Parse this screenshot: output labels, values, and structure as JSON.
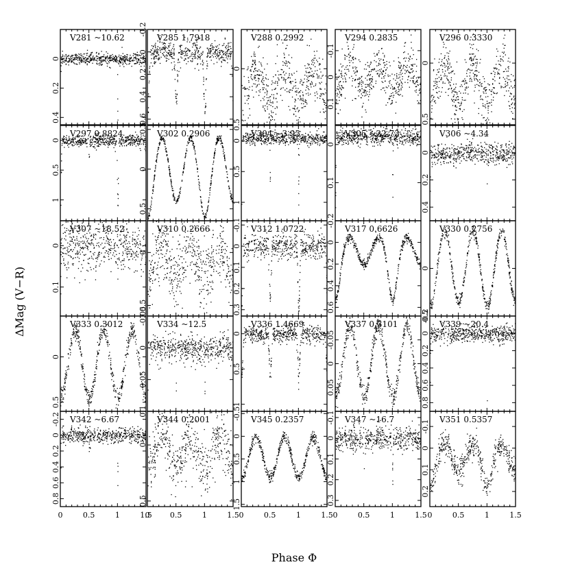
{
  "figure": {
    "xlabel": "Phase Φ",
    "ylabel": "ΔMag (V−R)"
  },
  "chart_data": {
    "type": "scatter",
    "grid": false,
    "xlim": [
      0,
      1.5
    ],
    "xticks": [
      "0",
      "0.5",
      "1",
      "1.5"
    ],
    "xlabel": "Phase Φ",
    "ylabel": "ΔMag (V−R)",
    "note": "y axes inverted (brighter up)",
    "panels": [
      {
        "label": "V281 ~10.62",
        "model": "flat",
        "base": 0.0,
        "noise": 0.02,
        "ylim": [
          0.45,
          -0.2
        ],
        "yticks": [
          0,
          0.2,
          0.4
        ],
        "dips": [
          {
            "x": 1.0,
            "depth": 0.45,
            "w": 0.004
          }
        ]
      },
      {
        "label": "V285 1.7918",
        "model": "dips",
        "base": 0.0,
        "noise": 0.05,
        "ylim": [
          0.65,
          -0.2
        ],
        "yticks": [
          -0.2,
          0,
          0.2,
          0.4,
          0.6
        ],
        "dips": [
          {
            "x": 0.5,
            "depth": 0.5,
            "w": 0.025
          },
          {
            "x": 1.0,
            "depth": 0.58,
            "w": 0.025
          }
        ]
      },
      {
        "label": "V288 0.2992",
        "model": "ew",
        "base": 0.0,
        "amp": 0.3,
        "noise": 0.12,
        "ylim": [
          0.5,
          -0.35
        ],
        "yticks": [
          0,
          0.5
        ]
      },
      {
        "label": "V294 0.2835",
        "model": "ew",
        "base": -0.05,
        "amp": 0.1,
        "noise": 0.04,
        "ylim": [
          0.18,
          -0.18
        ],
        "yticks": [
          -0.1,
          0,
          0.1
        ]
      },
      {
        "label": "V296 0.3330",
        "model": "ew",
        "base": 0.0,
        "amp": 0.35,
        "noise": 0.12,
        "ylim": [
          0.55,
          -0.3
        ],
        "yticks": [
          0,
          0.5
        ]
      },
      {
        "label": "V297 0.8824",
        "model": "dips",
        "base": 0.0,
        "noise": 0.05,
        "ylim": [
          1.35,
          -0.25
        ],
        "yticks": [
          0,
          0.5,
          1
        ],
        "dips": [
          {
            "x": 0.5,
            "depth": 0.2,
            "w": 0.012
          },
          {
            "x": 1.0,
            "depth": 1.1,
            "w": 0.012
          }
        ]
      },
      {
        "label": "V302 0.2906",
        "model": "ew",
        "base": -0.4,
        "amp": 0.8,
        "depth2": 1.0,
        "noise": 0.02,
        "ylim": [
          0.65,
          -0.55
        ],
        "yticks": [
          -0.5,
          0,
          0.5
        ]
      },
      {
        "label": "V304 ~3.93",
        "model": "dips",
        "base": -0.05,
        "noise": 0.05,
        "ylim": [
          1.3,
          -0.25
        ],
        "yticks": [
          0,
          0.5,
          1
        ],
        "dips": [
          {
            "x": 0.5,
            "depth": 0.7,
            "w": 0.004
          },
          {
            "x": 1.0,
            "depth": 1.2,
            "w": 0.004
          }
        ]
      },
      {
        "label": "V305 ~22.73",
        "model": "dips",
        "base": -0.02,
        "noise": 0.01,
        "ylim": [
          0.2,
          -0.05
        ],
        "yticks": [
          0,
          0.1
        ],
        "dips": [
          {
            "x": 1.0,
            "depth": 0.18,
            "w": 0.004
          }
        ]
      },
      {
        "label": "V306 ~4.34",
        "model": "dips",
        "base": 0.0,
        "noise": 0.04,
        "ylim": [
          0.5,
          -0.2
        ],
        "yticks": [
          0,
          0.2,
          0.4
        ],
        "dips": [
          {
            "x": 1.0,
            "depth": 0.4,
            "w": 0.004
          }
        ]
      },
      {
        "label": "V307 ~18.52",
        "model": "dips",
        "base": 0.0,
        "noise": 0.03,
        "ylim": [
          0.17,
          -0.06
        ],
        "yticks": [
          0,
          0.1
        ],
        "dips": [
          {
            "x": 1.0,
            "depth": 0.13,
            "w": 0.004
          }
        ]
      },
      {
        "label": "V310 0.2666",
        "model": "ew",
        "base": -0.05,
        "amp": 0.3,
        "noise": 0.14,
        "ylim": [
          0.6,
          -0.3
        ],
        "yticks": [
          0,
          0.5
        ]
      },
      {
        "label": "V312 1.0722",
        "model": "dips",
        "base": 0.0,
        "noise": 0.03,
        "ylim": [
          0.33,
          -0.12
        ],
        "yticks": [
          -0.1,
          0,
          0.1,
          0.2,
          0.3
        ],
        "dips": [
          {
            "x": 0.5,
            "depth": 0.25,
            "w": 0.02
          },
          {
            "x": 1.0,
            "depth": 0.3,
            "w": 0.02
          }
        ]
      },
      {
        "label": "V317 0.6626",
        "model": "ew",
        "base": -0.05,
        "amp": 0.25,
        "depth2": 0.58,
        "noise": 0.02,
        "ylim": [
          0.68,
          -0.2
        ],
        "yticks": [
          -0.2,
          0,
          0.2,
          0.4,
          0.6
        ]
      },
      {
        "label": "V330 0.2756",
        "model": "ew",
        "base": -0.4,
        "amp": 0.75,
        "depth2": 0.8,
        "noise": 0.03,
        "ylim": [
          0.5,
          -0.5
        ],
        "yticks": [
          0,
          0.5
        ]
      },
      {
        "label": "V333 0.3012",
        "model": "ew",
        "base": -0.3,
        "amp": 0.75,
        "noise": 0.05,
        "ylim": [
          0.6,
          -0.45
        ],
        "yticks": [
          0,
          0.5
        ]
      },
      {
        "label": "V334 ~12.5",
        "model": "dips",
        "base": 0.0,
        "noise": 0.01,
        "ylim": [
          0.1,
          -0.05
        ],
        "yticks": [
          -0.05,
          0,
          0.05,
          0.1
        ],
        "dips": [
          {
            "x": 0.5,
            "depth": 0.05,
            "w": 0.004
          },
          {
            "x": 1.0,
            "depth": 0.07,
            "w": 0.004
          }
        ]
      },
      {
        "label": "V336 1.4669",
        "model": "dips",
        "base": 0.0,
        "noise": 0.06,
        "ylim": [
          1.1,
          -0.25
        ],
        "yticks": [
          0,
          0.5,
          1
        ],
        "dips": [
          {
            "x": 0.5,
            "depth": 0.55,
            "w": 0.025
          },
          {
            "x": 1.0,
            "depth": 0.6,
            "w": 0.025
          }
        ]
      },
      {
        "label": "V337 0.3101",
        "model": "ew",
        "base": -0.08,
        "amp": 0.15,
        "noise": 0.01,
        "ylim": [
          0.1,
          -0.1
        ],
        "yticks": [
          -0.05,
          0,
          0.05
        ]
      },
      {
        "label": "V339 ~20.4",
        "model": "dips",
        "base": 0.0,
        "noise": 0.05,
        "ylim": [
          0.9,
          -0.2
        ],
        "yticks": [
          -0.2,
          0,
          0.2,
          0.4,
          0.6,
          0.8
        ],
        "dips": [
          {
            "x": 1.0,
            "depth": 0.8,
            "w": 0.004
          }
        ]
      },
      {
        "label": "V342 ~6.67",
        "model": "dips",
        "base": 0.0,
        "noise": 0.05,
        "ylim": [
          0.9,
          -0.3
        ],
        "yticks": [
          -0.2,
          0,
          0.2,
          0.4,
          0.6,
          0.8
        ],
        "dips": [
          {
            "x": 0.5,
            "depth": 0.2,
            "w": 0.004
          },
          {
            "x": 1.0,
            "depth": 0.6,
            "w": 0.004
          }
        ]
      },
      {
        "label": "V344 0.2001",
        "model": "ew",
        "base": -0.1,
        "amp": 0.3,
        "noise": 0.12,
        "ylim": [
          0.55,
          -0.3
        ],
        "yticks": [
          0,
          0.5
        ]
      },
      {
        "label": "V345 0.2357",
        "model": "ew",
        "base": 0.0,
        "amp": 0.9,
        "noise": 0.06,
        "ylim": [
          1.55,
          -0.55
        ],
        "yticks": [
          -0.5,
          0,
          0.5,
          1,
          1.5
        ]
      },
      {
        "label": "V347 ~16.7",
        "model": "dips",
        "base": 0.0,
        "noise": 0.03,
        "ylim": [
          0.33,
          -0.13
        ],
        "yticks": [
          -0.1,
          0,
          0.1,
          0.2,
          0.3
        ],
        "dips": [
          {
            "x": 0.5,
            "depth": 0.12,
            "w": 0.004
          },
          {
            "x": 1.0,
            "depth": 0.24,
            "w": 0.004
          }
        ]
      },
      {
        "label": "V351 0.5357",
        "model": "ew",
        "base": -0.02,
        "amp": 0.12,
        "depth2": 0.2,
        "noise": 0.03,
        "ylim": [
          0.27,
          -0.17
        ],
        "yticks": [
          -0.1,
          0,
          0.1,
          0.2
        ]
      }
    ]
  }
}
